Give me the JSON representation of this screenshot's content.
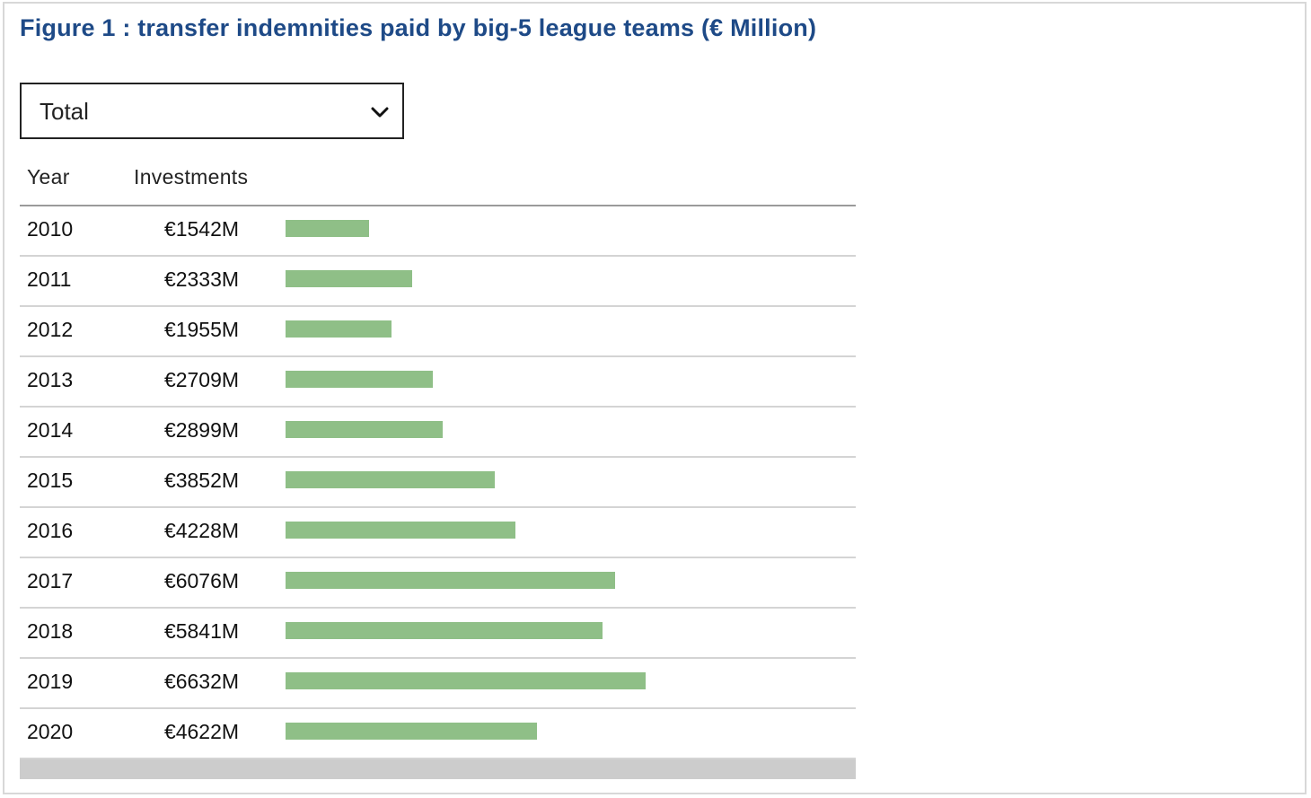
{
  "title": "Figure 1 : transfer indemnities paid by big-5 league teams (€ Million)",
  "filter": {
    "selected": "Total",
    "icon": "chevron-down-icon"
  },
  "table": {
    "headers": {
      "year": "Year",
      "investments": "Investments"
    }
  },
  "colors": {
    "title": "#1e4a87",
    "bar": "#8fbf87",
    "row_border": "#d4d4d4",
    "scrollbar": "#cccccc"
  },
  "chart_data": {
    "type": "bar",
    "orientation": "horizontal",
    "title": "Figure 1 : transfer indemnities paid by big-5 league teams (€ Million)",
    "categories": [
      "2010",
      "2011",
      "2012",
      "2013",
      "2014",
      "2015",
      "2016",
      "2017",
      "2018",
      "2019",
      "2020"
    ],
    "values": [
      1542,
      2333,
      1955,
      2709,
      2899,
      3852,
      4228,
      6076,
      5841,
      6632,
      4622
    ],
    "value_labels": [
      "€1542M",
      "€2333M",
      "€1955M",
      "€2709M",
      "€2899M",
      "€3852M",
      "€4228M",
      "€6076M",
      "€5841M",
      "€6632M",
      "€4622M"
    ],
    "xlim": [
      0,
      10500
    ],
    "grid": false
  }
}
